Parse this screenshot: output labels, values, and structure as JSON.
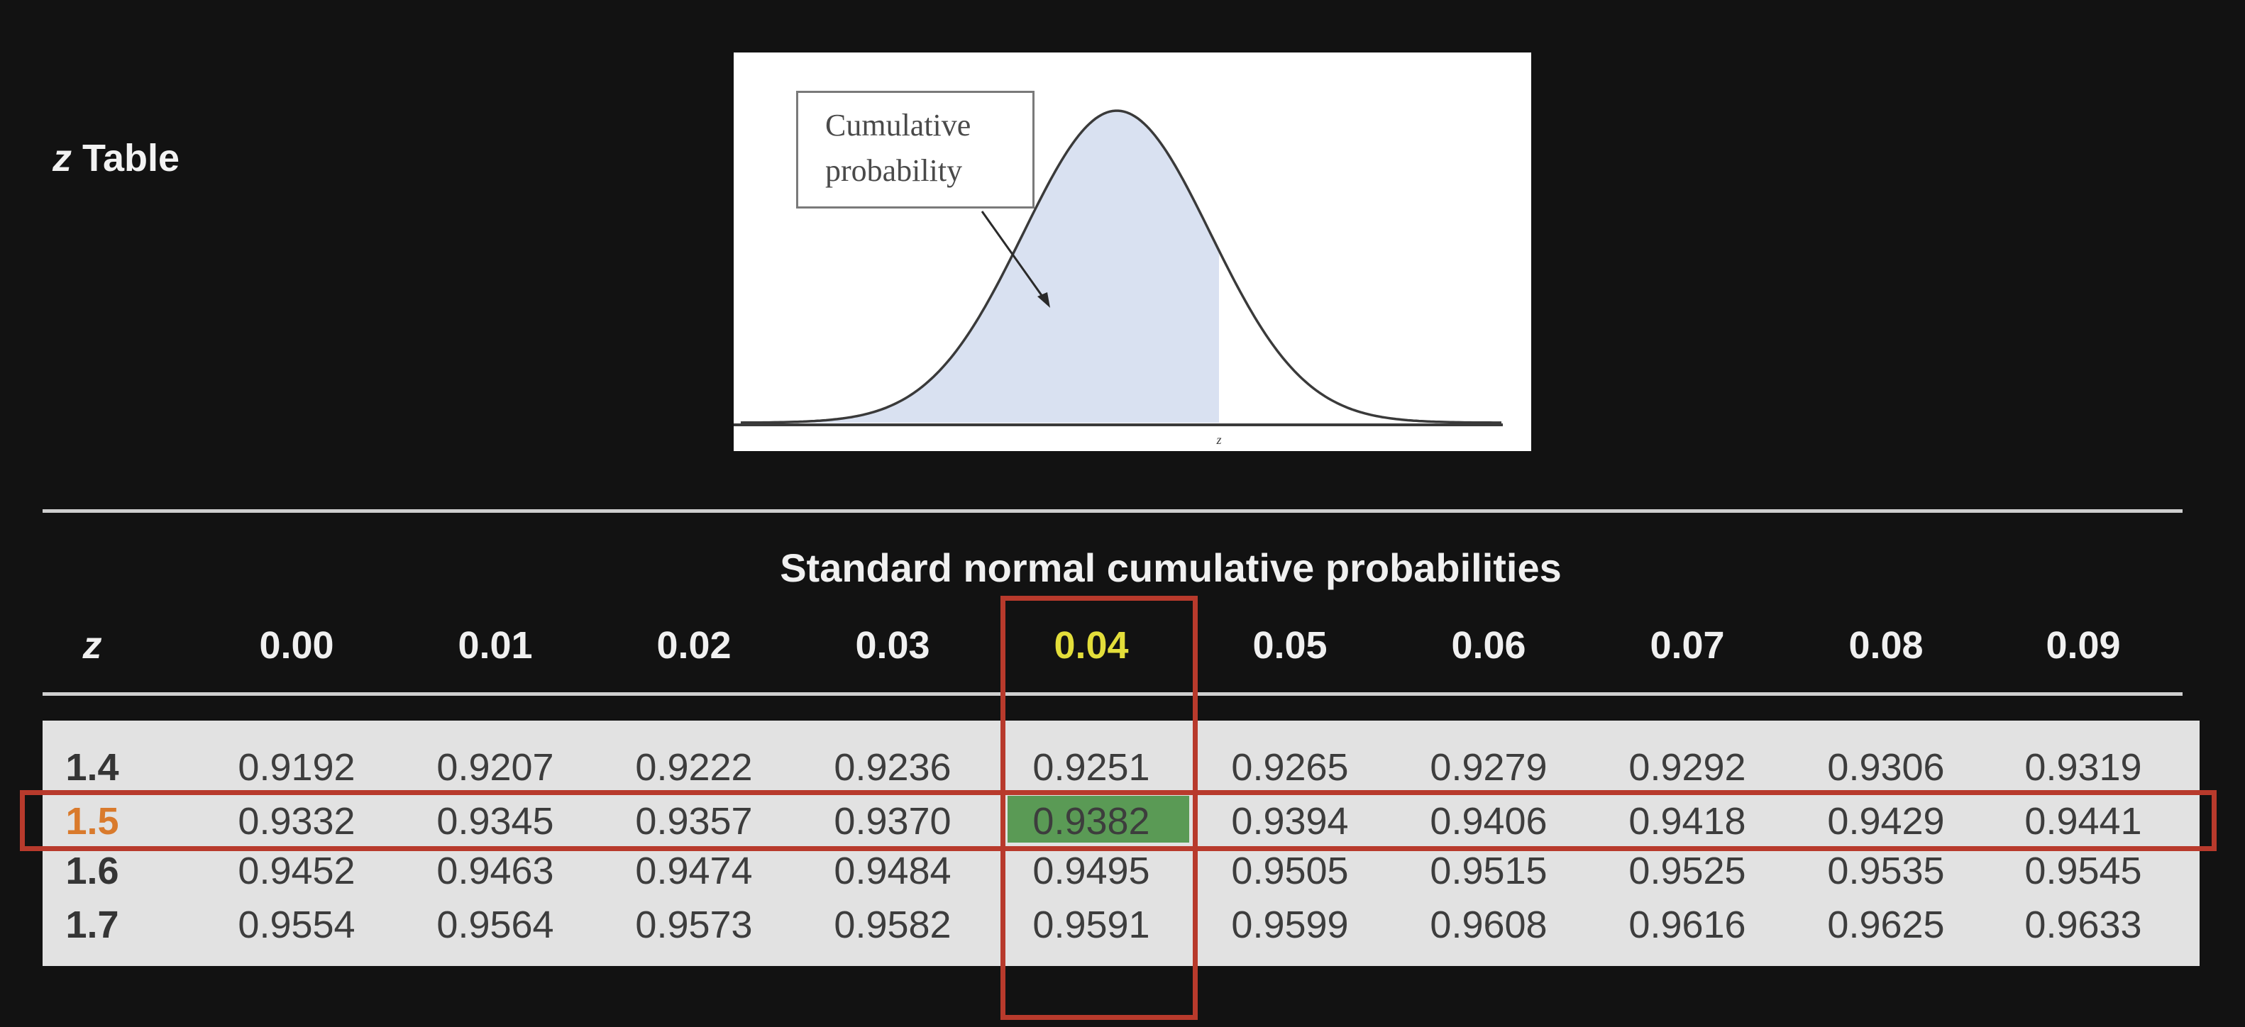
{
  "slide": {
    "title_var": "z",
    "title_rest": "Table"
  },
  "figure": {
    "callout_line1": "Cumulative",
    "callout_line2": "probability",
    "axis_label": "z",
    "fill_color": "#d9e1f1",
    "curve_color": "#3a3a3a"
  },
  "table": {
    "caption": "Standard normal cumulative probabilities",
    "z_header": "z",
    "columns": [
      "0.00",
      "0.01",
      "0.02",
      "0.03",
      "0.04",
      "0.05",
      "0.06",
      "0.07",
      "0.08",
      "0.09"
    ],
    "rows": [
      {
        "z": "1.4",
        "values": [
          "0.9192",
          "0.9207",
          "0.9222",
          "0.9236",
          "0.9251",
          "0.9265",
          "0.9279",
          "0.9292",
          "0.9306",
          "0.9319"
        ]
      },
      {
        "z": "1.5",
        "values": [
          "0.9332",
          "0.9345",
          "0.9357",
          "0.9370",
          "0.9382",
          "0.9394",
          "0.9406",
          "0.9418",
          "0.9429",
          "0.9441"
        ]
      },
      {
        "z": "1.6",
        "values": [
          "0.9452",
          "0.9463",
          "0.9474",
          "0.9484",
          "0.9495",
          "0.9505",
          "0.9515",
          "0.9525",
          "0.9535",
          "0.9545"
        ]
      },
      {
        "z": "1.7",
        "values": [
          "0.9554",
          "0.9564",
          "0.9573",
          "0.9582",
          "0.9591",
          "0.9599",
          "0.9608",
          "0.9616",
          "0.9625",
          "0.9633"
        ]
      }
    ],
    "highlight_row": "1.5",
    "highlight_column": "0.04",
    "highlight_value": "0.9382",
    "colors": {
      "column_header_highlight": "#e3de3a",
      "row_label_highlight": "#d97a2c",
      "selected_cell": "#5a9a55",
      "frame": "#b83a2c"
    }
  }
}
